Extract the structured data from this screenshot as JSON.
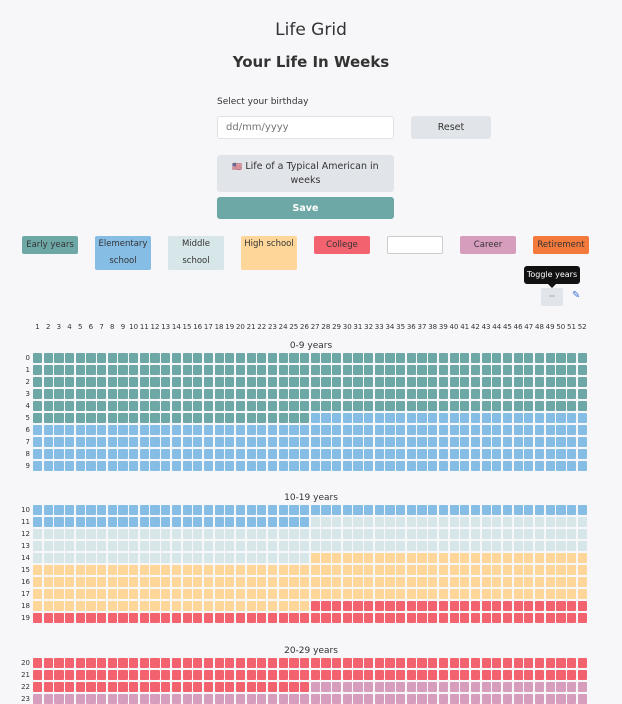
{
  "app_title": "Life Grid",
  "subtitle": "Your Life In Weeks",
  "birthday": {
    "label": "Select your birthday",
    "placeholder": "dd/mm/yyyy",
    "value": ""
  },
  "buttons": {
    "reset": "Reset",
    "typical_flag": "🇺🇸",
    "typical": "Life of a Typical American in weeks",
    "save": "Save"
  },
  "legend": [
    {
      "label": "Early years",
      "color": "#6ea8a6",
      "start": 0,
      "end": 5.5
    },
    {
      "label": "Elementary school",
      "color": "#86bde4",
      "start": 5.5,
      "end": 11.5
    },
    {
      "label": "Middle school",
      "color": "#d7e6e8",
      "start": 11.5,
      "end": 14.5
    },
    {
      "label": "High school",
      "color": "#fed69a",
      "start": 14.5,
      "end": 18.5
    },
    {
      "label": "College",
      "color": "#f2636f",
      "start": 18.5,
      "end": 22.5
    },
    {
      "label": "",
      "color": "#ffffff"
    },
    {
      "label": "Career",
      "color": "#d79dbd",
      "start": 22.5,
      "end": 65
    },
    {
      "label": "Retirement",
      "color": "#f47a3c"
    }
  ],
  "tooltip": "Toggle years",
  "toggle_label": "··",
  "edit_icon": "pencil-icon",
  "weeks_per_year": 52,
  "sections": [
    {
      "label": "0-9 years",
      "start": 0,
      "rows": 10
    },
    {
      "label": "10-19 years",
      "start": 10,
      "rows": 10
    },
    {
      "label": "20-29 years",
      "start": 20,
      "rows": 10
    }
  ]
}
